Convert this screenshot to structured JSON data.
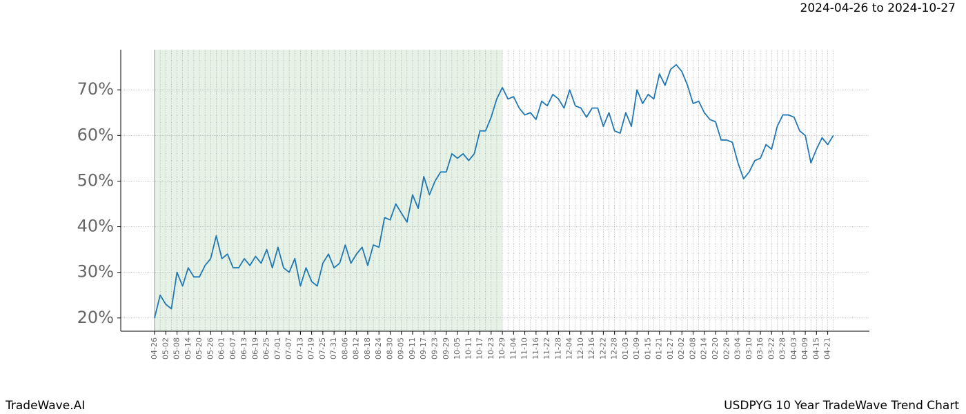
{
  "chart_data": {
    "type": "line",
    "title": "USDPYG 10 Year TradeWave Trend Chart",
    "subtitle": "2024-04-26 to 2024-10-27",
    "brand": "TradeWave.AI",
    "categories": [
      "04-26",
      null,
      "05-02",
      null,
      "05-08",
      null,
      "05-14",
      null,
      "05-20",
      null,
      "05-26",
      null,
      "06-01",
      null,
      "06-07",
      null,
      "06-13",
      null,
      "06-19",
      null,
      "06-25",
      null,
      "07-01",
      null,
      "07-07",
      null,
      "07-13",
      null,
      "07-19",
      null,
      "07-25",
      null,
      "07-31",
      null,
      "08-06",
      null,
      "08-12",
      null,
      "08-18",
      null,
      "08-24",
      null,
      "08-30",
      null,
      "09-05",
      null,
      "09-11",
      null,
      "09-17",
      null,
      "09-23",
      null,
      "09-29",
      null,
      "10-05",
      null,
      "10-11",
      null,
      "10-17",
      null,
      "10-23",
      null,
      "10-29",
      null,
      "11-04",
      null,
      "11-10",
      null,
      "11-16",
      null,
      "11-22",
      null,
      "11-28",
      null,
      "12-04",
      null,
      "12-10",
      null,
      "12-16",
      null,
      "12-22",
      null,
      "12-28",
      null,
      "01-03",
      null,
      "01-09",
      null,
      "01-15",
      null,
      "01-21",
      null,
      "01-27",
      null,
      "02-02",
      null,
      "02-08",
      null,
      "02-14",
      null,
      "02-20",
      null,
      "02-26",
      null,
      "03-04",
      null,
      "03-10",
      null,
      "03-16",
      null,
      "03-22",
      null,
      "03-28",
      null,
      "04-03",
      null,
      "04-09",
      null,
      "04-15",
      null,
      "04-21",
      null
    ],
    "values": [
      20,
      25,
      23,
      22,
      30,
      27,
      31,
      29,
      29,
      31.5,
      33,
      38,
      33,
      34,
      31,
      31,
      33,
      31.5,
      33.5,
      32,
      35,
      31,
      35.5,
      31,
      30,
      33,
      27,
      31,
      28,
      27,
      32,
      34,
      31,
      32,
      36,
      32,
      34,
      35.5,
      31.5,
      36,
      35.5,
      42,
      41.5,
      45,
      43,
      41,
      47,
      44,
      51,
      47,
      50,
      52,
      52,
      56,
      55,
      56,
      54.5,
      56,
      61,
      61,
      64,
      68,
      70.5,
      68,
      68.5,
      66,
      64.5,
      65,
      63.5,
      67.5,
      66.5,
      69,
      68,
      66,
      70,
      66.5,
      66,
      64,
      66,
      66,
      62,
      65,
      61,
      60.5,
      65,
      62,
      70,
      67,
      69,
      68,
      73.5,
      71,
      74.5,
      75.5,
      74,
      71,
      67,
      67.5,
      65,
      63.5,
      63,
      59,
      59,
      58.5,
      54,
      50.5,
      52,
      54.5,
      55,
      58,
      57,
      62,
      64.5,
      64.5,
      64,
      61,
      60,
      54,
      57,
      59.5,
      58,
      60
    ],
    "color": "#1f77b4",
    "ylim": [
      17.1,
      78.8
    ],
    "yticks": [
      {
        "value": 20,
        "label": "20%"
      },
      {
        "value": 30,
        "label": "30%"
      },
      {
        "value": 40,
        "label": "40%"
      },
      {
        "value": 50,
        "label": "50%"
      },
      {
        "value": 60,
        "label": "60%"
      },
      {
        "value": 70,
        "label": "70%"
      }
    ],
    "grid": true,
    "shade": {
      "start": "04-26",
      "end": "10-29",
      "color": "#e5f2e5"
    }
  }
}
